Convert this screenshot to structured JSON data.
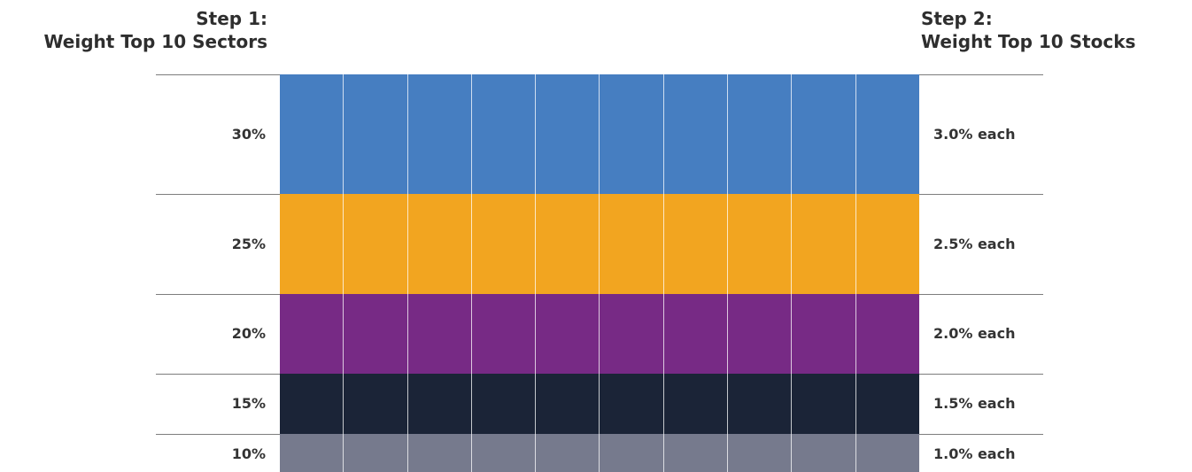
{
  "headings": {
    "left_line1": "Step 1:",
    "left_line2": "Weight Top 10 Sectors",
    "right_line1": "Step 2:",
    "right_line2": "Weight Top 10 Stocks"
  },
  "columns_per_band": 10,
  "bands": [
    {
      "sector_weight": "30%",
      "stock_weight": "3.0% each",
      "value": 30,
      "color": "#467EC1"
    },
    {
      "sector_weight": "25%",
      "stock_weight": "2.5% each",
      "value": 25,
      "color": "#F2A520"
    },
    {
      "sector_weight": "20%",
      "stock_weight": "2.0% each",
      "value": 20,
      "color": "#772A85"
    },
    {
      "sector_weight": "15%",
      "stock_weight": "1.5% each",
      "value": 15,
      "color": "#1B2437"
    },
    {
      "sector_weight": "10%",
      "stock_weight": "1.0% each",
      "value": 10,
      "color": "#767A8D"
    }
  ]
}
